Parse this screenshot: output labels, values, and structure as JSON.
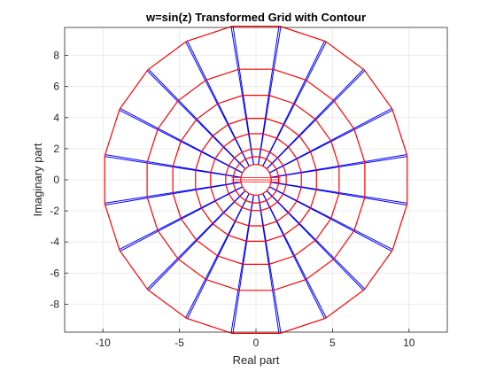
{
  "chart_data": {
    "type": "line",
    "title": "w=sin(z) Transformed Grid with Contour",
    "xlabel": "Real part",
    "ylabel": "Imaginary part",
    "xlim": [
      -12.5,
      12.5
    ],
    "ylim": [
      -9.8,
      9.8
    ],
    "xticks": [
      -10,
      -5,
      0,
      5,
      10
    ],
    "yticks": [
      -8,
      -6,
      -4,
      -2,
      0,
      2,
      4,
      6,
      8
    ],
    "grid": true,
    "legend": "none",
    "radial_spokes": {
      "count": 20,
      "inner_radius": 1.0,
      "outer_radius": 10.0,
      "rotation_deg": 9,
      "pair_offset_deg": 0.35
    },
    "series": [
      {
        "color": "#ff0000",
        "kind": "polygon-rings",
        "sides": 20,
        "radii": [
          1.0,
          1.5,
          2.0,
          3.0,
          4.0,
          5.5,
          7.2,
          10.0
        ],
        "rotation_deg": 9
      },
      {
        "color": "#0000ff",
        "kind": "radial-spokes"
      }
    ]
  }
}
